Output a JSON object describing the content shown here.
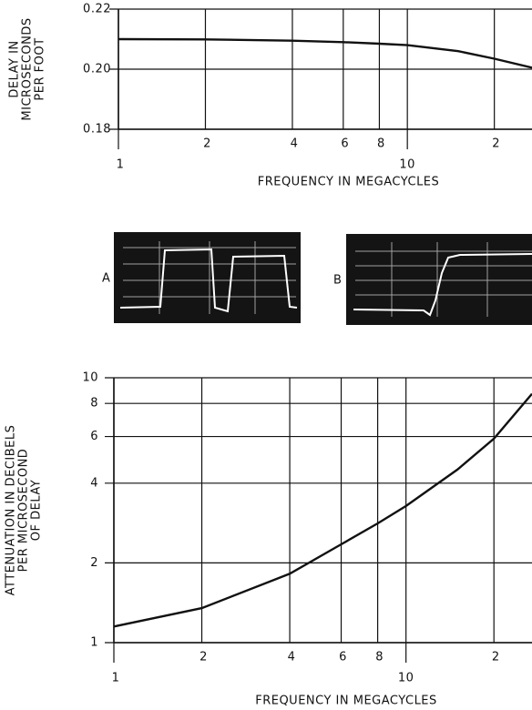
{
  "chart_data": [
    {
      "type": "line",
      "ylabel": [
        "DELAY IN",
        "MICROSECONDS",
        "PER FOOT"
      ],
      "xlabel": "FREQUENCY IN MEGACYCLES",
      "xscale": "log",
      "yscale": "linear",
      "grid": true,
      "xlim": [
        1,
        27
      ],
      "ylim": [
        0.18,
        0.22
      ],
      "xticks": [
        1,
        2,
        4,
        6,
        8,
        10,
        {
          "value": 20,
          "label": "2"
        }
      ],
      "yticks": [
        {
          "value": 0.18,
          "label": "0.18"
        },
        {
          "value": 0.2,
          "label": "0.20"
        },
        {
          "value": 0.22,
          "label": "0.22"
        }
      ],
      "series": [
        {
          "color": "#111111",
          "x": [
            1,
            2,
            4,
            6,
            8,
            10,
            15,
            20,
            27
          ],
          "values": [
            0.21,
            0.2099,
            0.2095,
            0.209,
            0.2085,
            0.208,
            0.206,
            0.2035,
            0.2005
          ]
        }
      ]
    },
    {
      "type": "line",
      "ylabel": [
        "ATTENUATION IN DECIBELS",
        "PER MICROSECOND",
        "OF DELAY"
      ],
      "xlabel": "FREQUENCY IN MEGACYCLES",
      "xscale": "log",
      "yscale": "log",
      "grid": true,
      "xlim": [
        1,
        27
      ],
      "ylim": [
        1,
        10
      ],
      "xticks": [
        1,
        2,
        4,
        6,
        8,
        10,
        {
          "value": 20,
          "label": "2"
        }
      ],
      "yticks": [
        1,
        2,
        4,
        6,
        8,
        10
      ],
      "series": [
        {
          "color": "#111111",
          "x": [
            1,
            2,
            4,
            6,
            8,
            10,
            15,
            20,
            27
          ],
          "values": [
            1.15,
            1.35,
            1.82,
            2.35,
            2.82,
            3.28,
            4.5,
            5.89,
            8.7
          ]
        }
      ]
    }
  ],
  "oscillograms": [
    "A",
    "B"
  ]
}
